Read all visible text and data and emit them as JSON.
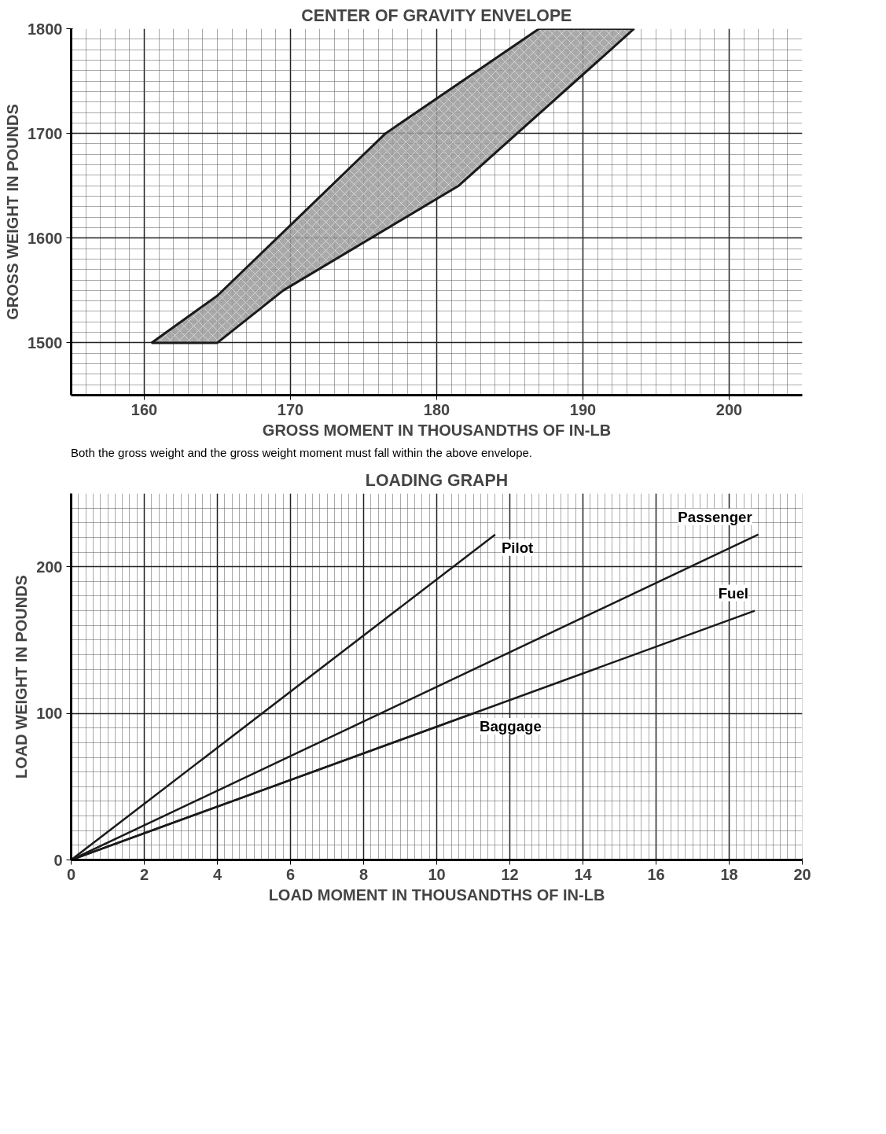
{
  "chart_data": [
    {
      "type": "area",
      "title": "CENTER OF GRAVITY ENVELOPE",
      "xlabel": "GROSS MOMENT IN THOUSANDTHS OF IN-LB",
      "ylabel": "GROSS WEIGHT IN POUNDS",
      "series": [
        {
          "color": "#9a9a9a",
          "x": [
            160.5,
            165,
            176.5,
            187,
            193.5,
            181.5,
            169.5,
            165
          ],
          "values": [
            1500,
            1545,
            1700,
            1800,
            1800,
            1650,
            1550,
            1500
          ]
        }
      ],
      "xlim": [
        155,
        205
      ],
      "ylim": [
        1450,
        1800
      ],
      "xticks": [
        160,
        170,
        180,
        190,
        200
      ],
      "yticks": [
        1500,
        1600,
        1700,
        1800
      ],
      "grid": true,
      "annotations": [
        "Both the gross weight and the gross weight moment must fall within the above envelope."
      ]
    },
    {
      "type": "line",
      "title": "LOADING GRAPH",
      "xlabel": "LOAD MOMENT IN THOUSANDTHS OF IN-LB",
      "ylabel": "LOAD WEIGHT IN POUNDS",
      "series": [
        {
          "name": "Pilot",
          "color": "#1a1a1a",
          "x": [
            0,
            11.6
          ],
          "values": [
            0,
            222
          ]
        },
        {
          "name": "Passenger",
          "color": "#1a1a1a",
          "x": [
            0,
            18.8
          ],
          "values": [
            0,
            222
          ]
        },
        {
          "name": "Fuel",
          "color": "#1a1a1a",
          "x": [
            0,
            18.7
          ],
          "values": [
            0,
            170
          ]
        },
        {
          "name": "Baggage",
          "color": "#1a1a1a",
          "x": [
            0,
            11.0
          ],
          "values": [
            0,
            100
          ]
        }
      ],
      "xlim": [
        0,
        20
      ],
      "ylim": [
        0,
        250
      ],
      "xticks": [
        0,
        2,
        4,
        6,
        8,
        10,
        12,
        14,
        16,
        18,
        20
      ],
      "yticks": [
        0,
        100,
        200
      ],
      "grid": true
    }
  ]
}
